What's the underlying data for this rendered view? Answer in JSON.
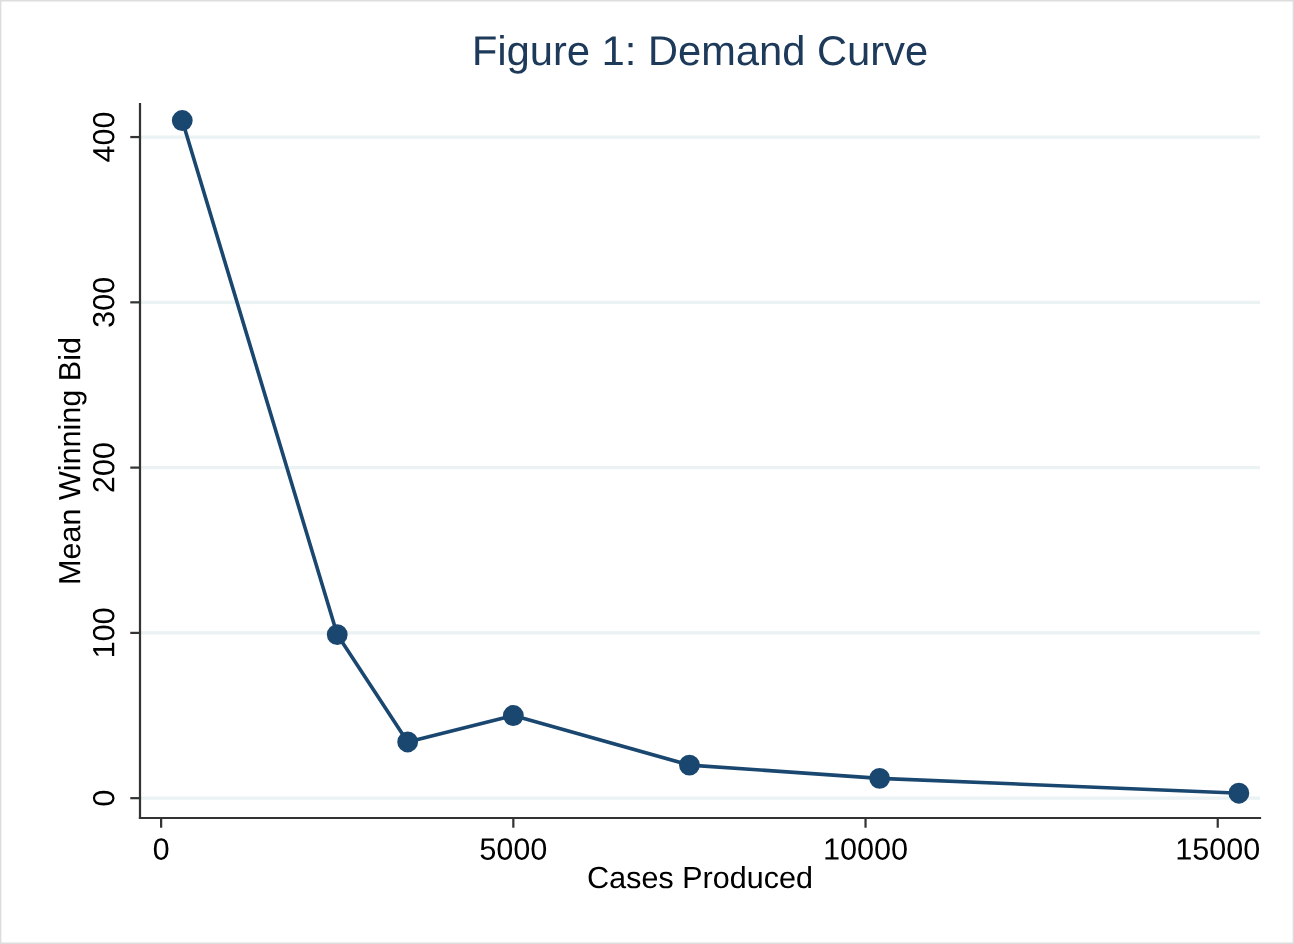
{
  "chart_data": {
    "type": "line",
    "title": "Figure 1: Demand Curve",
    "xlabel": "Cases Produced",
    "ylabel": "Mean Winning Bid",
    "x": [
      300,
      2500,
      3500,
      5000,
      7500,
      10200,
      15300
    ],
    "series": [
      {
        "color": "#1a476f",
        "values": [
          410,
          99,
          34,
          50,
          20,
          12,
          3
        ]
      }
    ],
    "xlim": [
      -300,
      15600
    ],
    "xticks": [
      0,
      5000,
      10000,
      15000
    ],
    "ylim": [
      -12,
      420
    ],
    "yticks": [
      0,
      100,
      200,
      300,
      400
    ],
    "grid": "y",
    "marker": "circle",
    "line_style": "solid"
  }
}
